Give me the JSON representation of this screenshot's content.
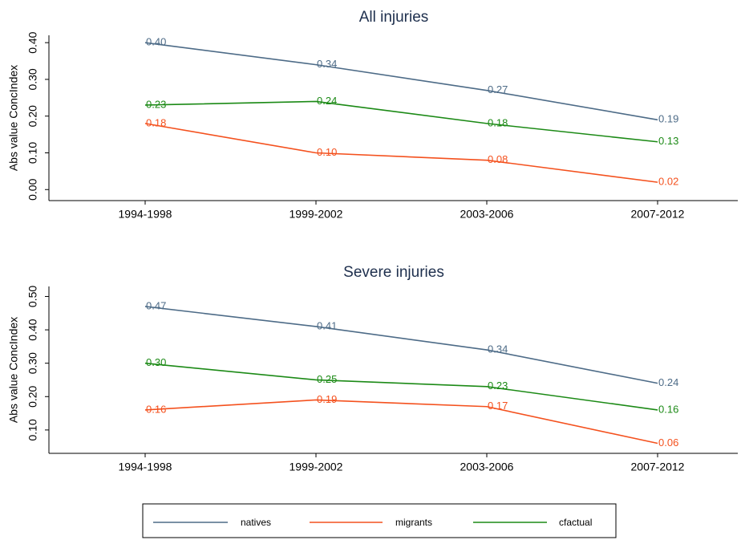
{
  "chart_data": [
    {
      "type": "line",
      "title": "All injuries",
      "y_label": "Abs value ConcIndex",
      "categories": [
        "1994-1998",
        "1999-2002",
        "2003-2006",
        "2007-2012"
      ],
      "ylim": [
        -0.03,
        0.42
      ],
      "yticks": [
        {
          "value": 0,
          "label": "0.00"
        },
        {
          "value": 0.1,
          "label": "0.10"
        },
        {
          "value": 0.2,
          "label": "0.20"
        },
        {
          "value": 0.3,
          "label": "0.30"
        },
        {
          "value": 0.4,
          "label": "0.40"
        }
      ],
      "series": [
        {
          "name": "natives",
          "color": "#4d6b87",
          "values": [
            0.4,
            0.34,
            0.27,
            0.19
          ],
          "value_labels": [
            "0.40",
            "0.34",
            "0.27",
            "0.19"
          ]
        },
        {
          "name": "migrants",
          "color": "#f4511e",
          "values": [
            0.18,
            0.1,
            0.08,
            0.02
          ],
          "value_labels": [
            "0.18",
            "0.10",
            "0.08",
            "0.02"
          ]
        },
        {
          "name": "cfactual",
          "color": "#1c8a16",
          "values": [
            0.23,
            0.24,
            0.18,
            0.13
          ],
          "value_labels": [
            "0.23",
            "0.24",
            "0.18",
            "0.13"
          ]
        }
      ]
    },
    {
      "type": "line",
      "title": "Severe injuries",
      "y_label": "Abs value ConcIndex",
      "categories": [
        "1994-1998",
        "1999-2002",
        "2003-2006",
        "2007-2012"
      ],
      "ylim": [
        0.03,
        0.53
      ],
      "yticks": [
        {
          "value": 0.1,
          "label": "0.10"
        },
        {
          "value": 0.2,
          "label": "0.20"
        },
        {
          "value": 0.3,
          "label": "0.30"
        },
        {
          "value": 0.4,
          "label": "0.40"
        },
        {
          "value": 0.5,
          "label": "0.50"
        }
      ],
      "series": [
        {
          "name": "natives",
          "color": "#4d6b87",
          "values": [
            0.47,
            0.41,
            0.34,
            0.24
          ],
          "value_labels": [
            "0.47",
            "0.41",
            "0.34",
            "0.24"
          ]
        },
        {
          "name": "migrants",
          "color": "#f4511e",
          "values": [
            0.16,
            0.19,
            0.17,
            0.06
          ],
          "value_labels": [
            "0.16",
            "0.19",
            "0.17",
            "0.06"
          ]
        },
        {
          "name": "cfactual",
          "color": "#1c8a16",
          "values": [
            0.3,
            0.25,
            0.23,
            0.16
          ],
          "value_labels": [
            "0.30",
            "0.25",
            "0.23",
            "0.16"
          ]
        }
      ]
    }
  ]
}
